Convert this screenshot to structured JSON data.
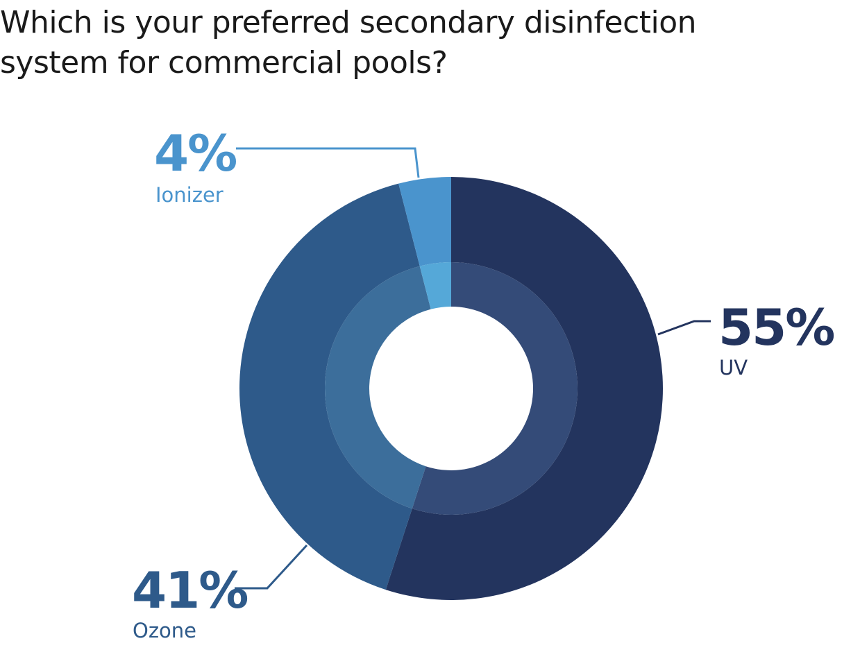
{
  "title": {
    "line1": "Which is your preferred secondary disinfection",
    "line2": "system for commercial pools?"
  },
  "chart_data": {
    "type": "pie",
    "variant": "donut",
    "title": "Which is your preferred secondary disinfection system for commercial pools?",
    "slices": [
      {
        "label": "UV",
        "value": 55,
        "display": "55%",
        "outer_color": "#23345e",
        "inner_color": "#344b78",
        "text_color": "#23345e"
      },
      {
        "label": "Ozone",
        "value": 41,
        "display": "41%",
        "outer_color": "#2e5a8a",
        "inner_color": "#3c6e9b",
        "text_color": "#2e5a8a"
      },
      {
        "label": "Ionizer",
        "value": 4,
        "display": "4%",
        "outer_color": "#4a94cd",
        "inner_color": "#55a8d8",
        "text_color": "#4a94cd"
      }
    ],
    "start_angle_deg": 0,
    "direction": "clockwise",
    "legend": "none"
  }
}
